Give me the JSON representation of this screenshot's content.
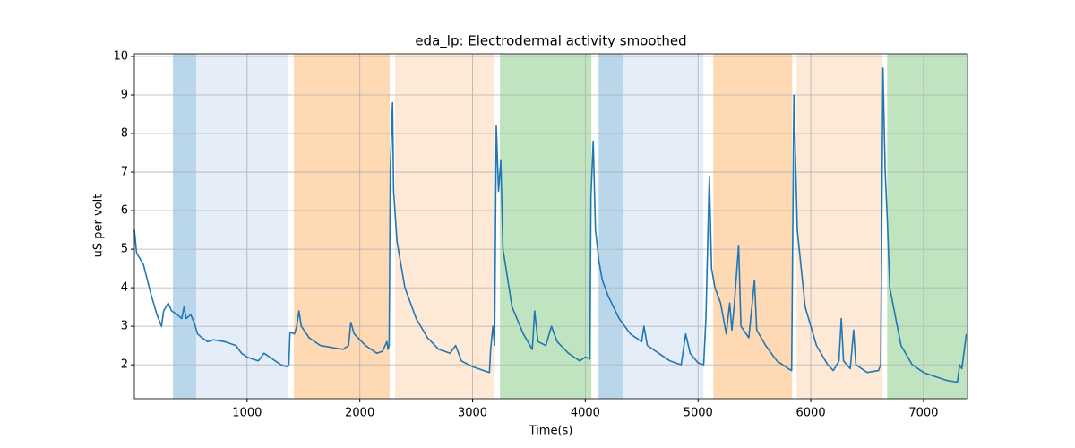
{
  "chart_data": {
    "type": "line",
    "title": "eda_lp: Electrodermal activity smoothed",
    "xlabel": "Time(s)",
    "ylabel": "uS per volt",
    "xlim": [
      0,
      7390
    ],
    "ylim": [
      1.12,
      10.07
    ],
    "xticks": [
      1000,
      2000,
      3000,
      4000,
      5000,
      6000,
      7000
    ],
    "yticks": [
      2,
      3,
      4,
      5,
      6,
      7,
      8,
      9,
      10
    ],
    "grid": true,
    "spans": [
      {
        "start": 342,
        "end": 548,
        "color": "#bad6ea"
      },
      {
        "start": 548,
        "end": 1360,
        "color": "#e5edf8"
      },
      {
        "start": 1415,
        "end": 2265,
        "color": "#ffd8b4"
      },
      {
        "start": 2313,
        "end": 3196,
        "color": "#fee9d6"
      },
      {
        "start": 3243,
        "end": 4054,
        "color": "#c0e4c0"
      },
      {
        "start": 4118,
        "end": 4332,
        "color": "#bad6ea"
      },
      {
        "start": 4332,
        "end": 5048,
        "color": "#e5edf8"
      },
      {
        "start": 5135,
        "end": 5835,
        "color": "#ffd8b4"
      },
      {
        "start": 5874,
        "end": 6637,
        "color": "#fee9d6"
      },
      {
        "start": 6677,
        "end": 7390,
        "color": "#c0e4c0"
      }
    ],
    "series": [
      {
        "color": "#1f77b4",
        "x": [
          0,
          20,
          80,
          150,
          200,
          240,
          260,
          300,
          330,
          380,
          420,
          440,
          460,
          500,
          530,
          560,
          600,
          650,
          700,
          800,
          900,
          950,
          1000,
          1050,
          1100,
          1150,
          1200,
          1250,
          1300,
          1350,
          1370,
          1380,
          1420,
          1440,
          1460,
          1480,
          1550,
          1650,
          1750,
          1850,
          1900,
          1920,
          1950,
          2050,
          2150,
          2200,
          2240,
          2250,
          2260,
          2270,
          2290,
          2300,
          2330,
          2400,
          2500,
          2600,
          2700,
          2800,
          2850,
          2900,
          3000,
          3100,
          3150,
          3160,
          3180,
          3195,
          3210,
          3230,
          3250,
          3270,
          3350,
          3450,
          3530,
          3550,
          3580,
          3650,
          3700,
          3750,
          3850,
          3950,
          4000,
          4040,
          4050,
          4070,
          4090,
          4120,
          4150,
          4200,
          4300,
          4400,
          4500,
          4520,
          4550,
          4650,
          4750,
          4850,
          4890,
          4930,
          5000,
          5050,
          5070,
          5100,
          5120,
          5150,
          5200,
          5250,
          5280,
          5300,
          5320,
          5360,
          5380,
          5450,
          5500,
          5520,
          5600,
          5700,
          5800,
          5830,
          5850,
          5880,
          5950,
          6050,
          6150,
          6200,
          6250,
          6270,
          6290,
          6350,
          6380,
          6400,
          6500,
          6600,
          6620,
          6640,
          6660,
          6680,
          6700,
          6800,
          6900,
          7000,
          7100,
          7200,
          7300,
          7320,
          7340,
          7380
        ],
        "values": [
          5.5,
          4.9,
          4.6,
          3.8,
          3.3,
          3.0,
          3.4,
          3.6,
          3.4,
          3.3,
          3.2,
          3.5,
          3.2,
          3.3,
          3.1,
          2.8,
          2.7,
          2.6,
          2.65,
          2.6,
          2.5,
          2.3,
          2.2,
          2.15,
          2.1,
          2.3,
          2.2,
          2.1,
          2.0,
          1.95,
          2.0,
          2.85,
          2.8,
          3.0,
          3.4,
          3.0,
          2.7,
          2.5,
          2.45,
          2.4,
          2.5,
          3.1,
          2.8,
          2.5,
          2.3,
          2.35,
          2.6,
          2.4,
          2.5,
          7.1,
          8.8,
          6.5,
          5.2,
          4.0,
          3.2,
          2.7,
          2.4,
          2.3,
          2.5,
          2.1,
          1.95,
          1.85,
          1.8,
          2.4,
          3.0,
          2.5,
          8.2,
          6.5,
          7.3,
          5.0,
          3.5,
          2.8,
          2.4,
          3.4,
          2.6,
          2.5,
          3.0,
          2.6,
          2.3,
          2.1,
          2.2,
          2.15,
          6.4,
          7.8,
          5.5,
          4.7,
          4.2,
          3.8,
          3.2,
          2.8,
          2.6,
          3.0,
          2.5,
          2.3,
          2.1,
          2.0,
          2.8,
          2.3,
          2.05,
          2.0,
          3.2,
          6.9,
          4.5,
          4.0,
          3.6,
          2.8,
          3.6,
          2.9,
          3.5,
          5.1,
          3.0,
          2.7,
          4.2,
          2.9,
          2.5,
          2.1,
          1.9,
          1.85,
          9.0,
          5.5,
          3.5,
          2.5,
          2.0,
          1.85,
          2.1,
          3.2,
          2.1,
          1.9,
          2.9,
          2.0,
          1.8,
          1.85,
          2.0,
          9.7,
          7.0,
          5.7,
          4.0,
          2.5,
          2.0,
          1.8,
          1.7,
          1.6,
          1.55,
          2.0,
          1.9,
          2.8
        ]
      }
    ]
  }
}
